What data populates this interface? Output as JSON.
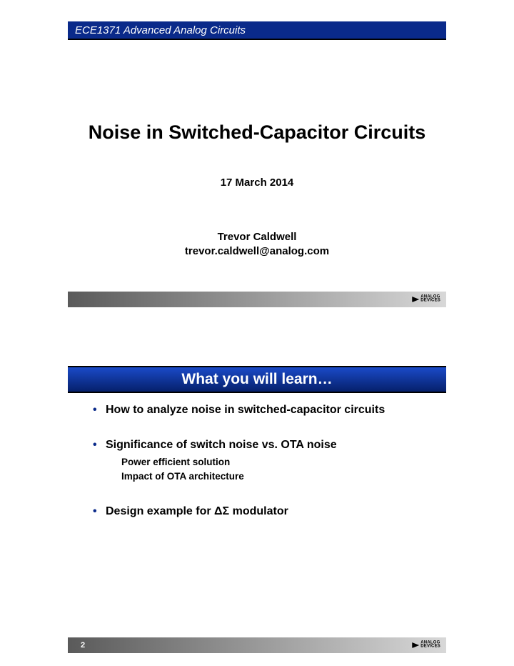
{
  "slide1": {
    "course_bar": "ECE1371 Advanced Analog Circuits",
    "title": "Noise in Switched-Capacitor Circuits",
    "date": "17 March 2014",
    "author_name": "Trevor Caldwell",
    "author_email": "trevor.caldwell@analog.com",
    "logo_top": "ANALOG",
    "logo_bottom": "DEVICES",
    "colors": {
      "course_bar_bg": "#0a2a8a",
      "footer_gradient_from": "#5a5a5a",
      "footer_gradient_to": "#d8d8d8"
    }
  },
  "slide2": {
    "title_bar": "What you will learn…",
    "bullets": [
      {
        "text": "How to analyze noise in switched-capacitor circuits",
        "subs": []
      },
      {
        "text": "Significance of switch noise vs. OTA noise",
        "subs": [
          "Power efficient solution",
          "Impact of OTA architecture"
        ]
      },
      {
        "text": "Design example for ΔΣ modulator",
        "subs": []
      }
    ],
    "page_number": "2",
    "logo_top": "ANALOG",
    "logo_bottom": "DEVICES",
    "colors": {
      "title_gradient_from": "#1a4ac8",
      "title_gradient_to": "#06206b",
      "bullet_marker": "#0a2a8a"
    }
  }
}
